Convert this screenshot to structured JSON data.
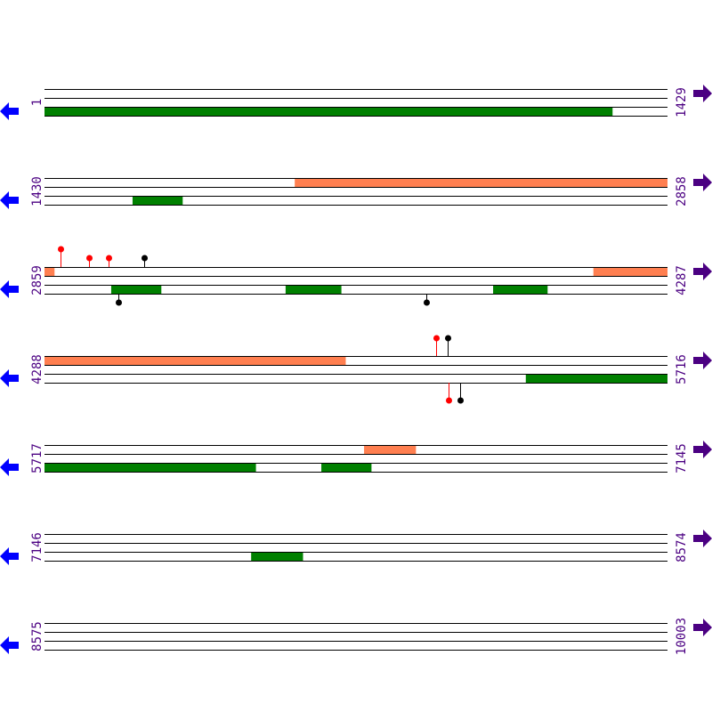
{
  "colors": {
    "line": "#000000",
    "orange_feature": "#ff7f50",
    "green_feature": "#008000",
    "red_marker": "#ff0000",
    "black_marker": "#000000",
    "label": "#4b0082",
    "left_arrow": "#0000ff",
    "right_arrow": "#4b0082"
  },
  "icons": {
    "left": "arrow-left-icon",
    "right": "arrow-right-icon"
  },
  "bp_per_row": 1429,
  "rows": [
    {
      "start": "1",
      "end": "1429",
      "features": [
        {
          "lane": "green",
          "from": 1,
          "to": 1303
        }
      ],
      "markers": []
    },
    {
      "start": "1430",
      "end": "2858",
      "features": [
        {
          "lane": "orange",
          "from": 2004,
          "to": 2858
        },
        {
          "lane": "green",
          "from": 1632,
          "to": 1746
        }
      ],
      "markers": []
    },
    {
      "start": "2859",
      "end": "4287",
      "features": [
        {
          "lane": "orange",
          "from": 2859,
          "to": 2881
        },
        {
          "lane": "orange",
          "from": 4118,
          "to": 4287
        },
        {
          "lane": "green",
          "from": 3012,
          "to": 3126
        },
        {
          "lane": "green",
          "from": 3412,
          "to": 3539
        },
        {
          "lane": "green",
          "from": 3888,
          "to": 4012
        }
      ],
      "markers": [
        {
          "pos": 2896,
          "side": "top",
          "color": "red",
          "level": 2
        },
        {
          "pos": 2961,
          "side": "top",
          "color": "red",
          "level": 1
        },
        {
          "pos": 3006,
          "side": "top",
          "color": "red",
          "level": 1
        },
        {
          "pos": 3088,
          "side": "top",
          "color": "black",
          "level": 1
        },
        {
          "pos": 3028,
          "side": "bottom",
          "color": "black",
          "level": 1
        },
        {
          "pos": 3735,
          "side": "bottom",
          "color": "black",
          "level": 1
        }
      ]
    },
    {
      "start": "4288",
      "end": "5716",
      "features": [
        {
          "lane": "orange",
          "from": 4288,
          "to": 4978
        },
        {
          "lane": "green",
          "from": 5392,
          "to": 5716
        }
      ],
      "markers": [
        {
          "pos": 5186,
          "side": "top",
          "color": "red",
          "level": 2
        },
        {
          "pos": 5213,
          "side": "top",
          "color": "black",
          "level": 2
        },
        {
          "pos": 5215,
          "side": "bottom",
          "color": "red",
          "level": 2
        },
        {
          "pos": 5241,
          "side": "bottom",
          "color": "black",
          "level": 2
        }
      ]
    },
    {
      "start": "5717",
      "end": "7145",
      "features": [
        {
          "lane": "orange",
          "from": 6450,
          "to": 6568
        },
        {
          "lane": "green",
          "from": 5717,
          "to": 6201
        },
        {
          "lane": "green",
          "from": 6352,
          "to": 6466
        }
      ],
      "markers": []
    },
    {
      "start": "7146",
      "end": "8574",
      "features": [
        {
          "lane": "green",
          "from": 7620,
          "to": 7738
        }
      ],
      "markers": []
    },
    {
      "start": "8575",
      "end": "10003",
      "features": [],
      "markers": []
    }
  ]
}
